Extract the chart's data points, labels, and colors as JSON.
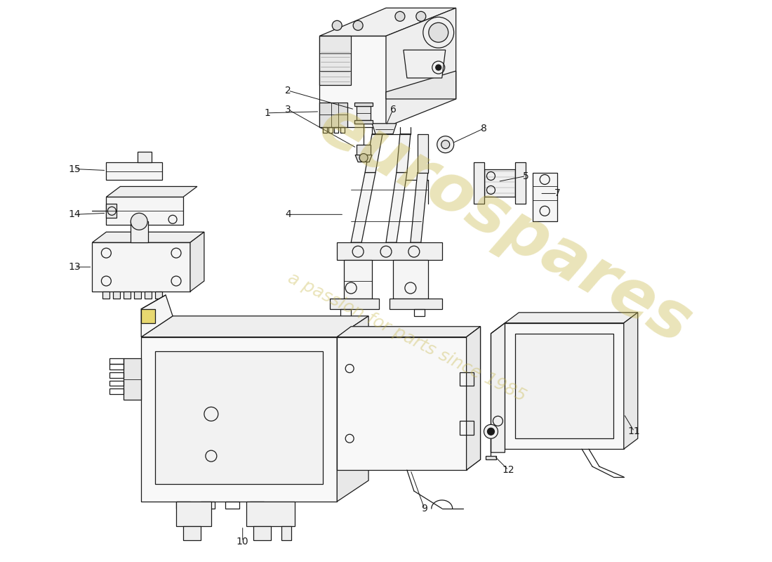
{
  "bg_color": "#ffffff",
  "line_color": "#1a1a1a",
  "watermark_text1": "eurospares",
  "watermark_text2": "a passion for parts since 1985",
  "watermark_color": "#c8b84a",
  "watermark_alpha": 0.38,
  "figsize": [
    11.0,
    8.0
  ],
  "dpi": 100,
  "xlim": [
    0,
    11
  ],
  "ylim": [
    0,
    8
  ]
}
